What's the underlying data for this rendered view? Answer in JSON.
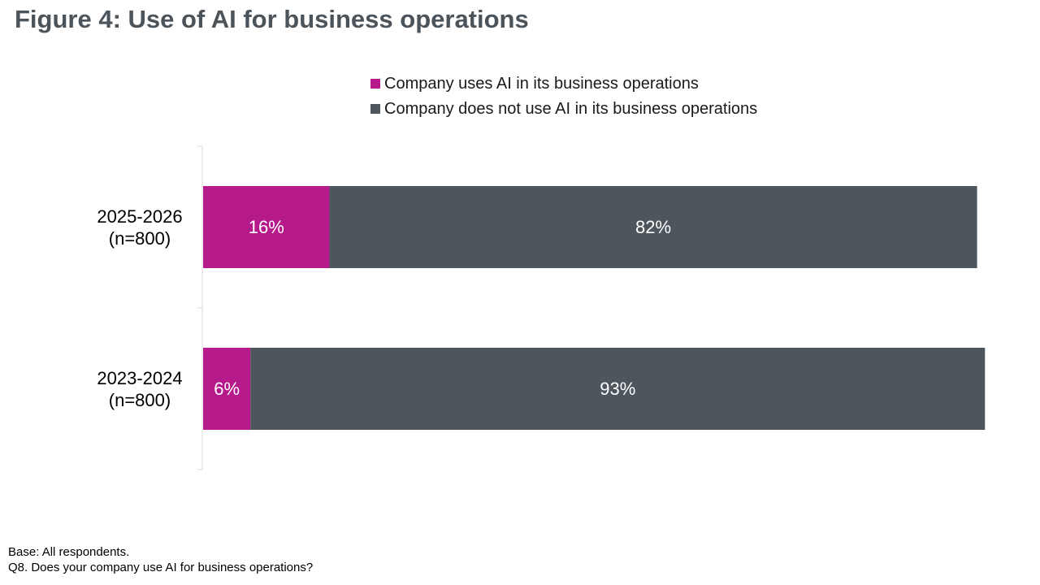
{
  "title": "Figure 4: Use of AI for business operations",
  "colors": {
    "uses": "#b5198a",
    "not_uses": "#4d555d",
    "axis": "#d9d9d9",
    "title": "#4b535b"
  },
  "chart_data": {
    "type": "bar",
    "orientation": "horizontal",
    "stacked": true,
    "categories": [
      {
        "label": "2025-2026",
        "sublabel": "(n=800)"
      },
      {
        "label": "2023-2024",
        "sublabel": "(n=800)"
      }
    ],
    "series": [
      {
        "name": "Company uses AI in its business operations",
        "color": "#b5198a",
        "values": [
          16,
          6
        ],
        "data_labels": [
          "16%",
          "6%"
        ]
      },
      {
        "name": "Company does not use AI in its business operations",
        "color": "#4d555d",
        "values": [
          82,
          93
        ],
        "data_labels": [
          "82%",
          "93%"
        ]
      }
    ],
    "xlim": [
      0,
      100
    ],
    "grid": false,
    "legend_position": "top"
  },
  "footnotes": {
    "base": "Base: All respondents.",
    "question": "Q8. Does your company use AI for business operations?"
  }
}
